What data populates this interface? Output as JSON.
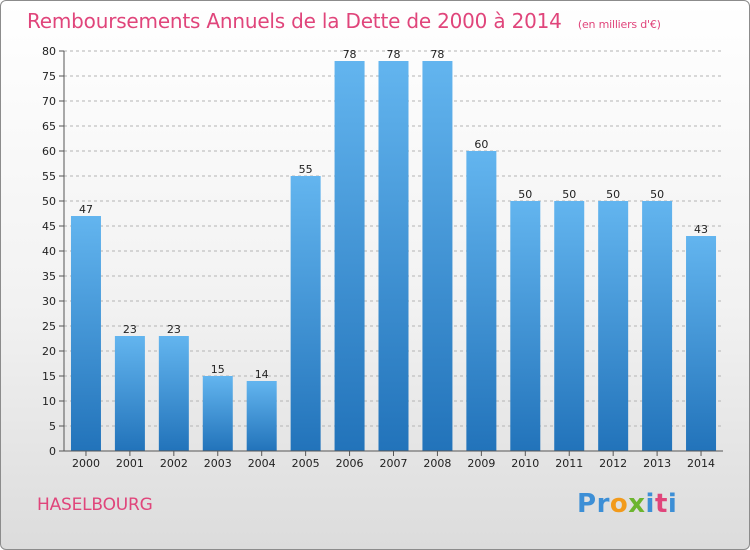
{
  "title": "Remboursements Annuels de la Dette de 2000 à 2014",
  "subtitle": "(en milliers d'€)",
  "city": "HASELBOURG",
  "logo": {
    "text": "Proxiti",
    "letters": [
      {
        "char": "P",
        "color": "#3d8fd6"
      },
      {
        "char": "r",
        "color": "#3d8fd6"
      },
      {
        "char": "o",
        "color": "#f29a1b"
      },
      {
        "char": "x",
        "color": "#6cb52f"
      },
      {
        "char": "i",
        "color": "#3d8fd6"
      },
      {
        "char": "t",
        "color": "#e0457b"
      },
      {
        "char": "i",
        "color": "#3d8fd6"
      }
    ]
  },
  "colors": {
    "title": "#e0457b",
    "bar_top": "#63b5ef",
    "bar_bottom": "#2273ba",
    "axis_text": "#222222",
    "grid": "#b4b4b4"
  },
  "chart_data": {
    "type": "bar",
    "categories": [
      "2000",
      "2001",
      "2002",
      "2003",
      "2004",
      "2005",
      "2006",
      "2007",
      "2008",
      "2009",
      "2010",
      "2011",
      "2012",
      "2013",
      "2014"
    ],
    "values": [
      47,
      23,
      23,
      15,
      14,
      55,
      78,
      78,
      78,
      60,
      50,
      50,
      50,
      50,
      43
    ],
    "data_labels": [
      "47",
      "23",
      "23",
      "15",
      "14",
      "55",
      "78",
      "78",
      "78",
      "60",
      "50",
      "50",
      "50",
      "50",
      "43"
    ],
    "ylim": [
      0,
      80
    ],
    "yticks": [
      "0",
      "5",
      "10",
      "15",
      "20",
      "25",
      "30",
      "35",
      "40",
      "45",
      "50",
      "55",
      "60",
      "65",
      "70",
      "75",
      "80"
    ],
    "grid": true
  }
}
